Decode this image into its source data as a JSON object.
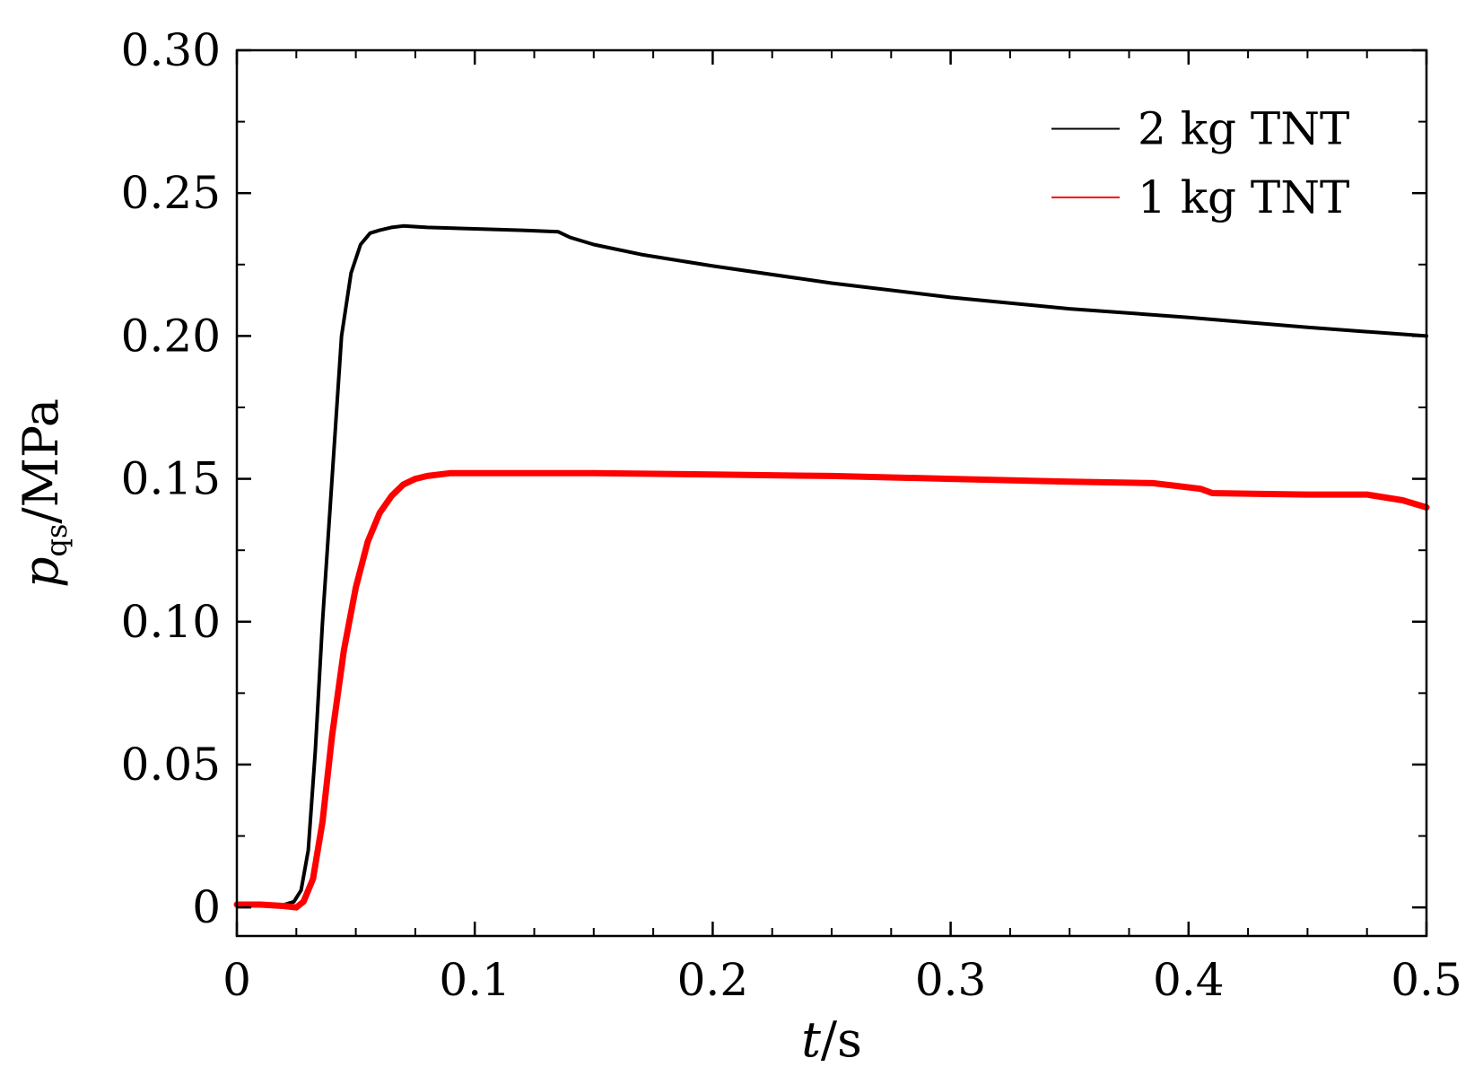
{
  "chart_data": {
    "type": "line",
    "title": "",
    "xlabel": {
      "var": "t",
      "unit": "/s"
    },
    "ylabel": {
      "var": "p",
      "sub": "qs",
      "unit": "/MPa"
    },
    "xlim": [
      0,
      0.5
    ],
    "ylim": [
      -0.01,
      0.3
    ],
    "x_ticks": [
      0,
      0.1,
      0.2,
      0.3,
      0.4,
      0.5
    ],
    "x_tick_labels": [
      "0",
      "0.1",
      "0.2",
      "0.3",
      "0.4",
      "0.5"
    ],
    "y_ticks": [
      0,
      0.05,
      0.1,
      0.15,
      0.2,
      0.25,
      0.3
    ],
    "y_tick_labels": [
      "0",
      "0.05",
      "0.10",
      "0.15",
      "0.20",
      "0.25",
      "0.30"
    ],
    "grid": false,
    "legend_position": "top-right",
    "series": [
      {
        "name": "2 kg TNT",
        "color": "#000000",
        "points": [
          [
            0,
            0.001
          ],
          [
            0.01,
            0.001
          ],
          [
            0.02,
            0.001
          ],
          [
            0.024,
            0.002
          ],
          [
            0.027,
            0.006
          ],
          [
            0.03,
            0.02
          ],
          [
            0.033,
            0.055
          ],
          [
            0.036,
            0.1
          ],
          [
            0.04,
            0.15
          ],
          [
            0.044,
            0.2
          ],
          [
            0.048,
            0.222
          ],
          [
            0.052,
            0.232
          ],
          [
            0.056,
            0.236
          ],
          [
            0.06,
            0.237
          ],
          [
            0.065,
            0.238
          ],
          [
            0.07,
            0.2385
          ],
          [
            0.08,
            0.238
          ],
          [
            0.1,
            0.2375
          ],
          [
            0.12,
            0.237
          ],
          [
            0.135,
            0.2365
          ],
          [
            0.14,
            0.2345
          ],
          [
            0.15,
            0.232
          ],
          [
            0.17,
            0.2285
          ],
          [
            0.2,
            0.2245
          ],
          [
            0.25,
            0.2185
          ],
          [
            0.3,
            0.2135
          ],
          [
            0.35,
            0.2095
          ],
          [
            0.4,
            0.2065
          ],
          [
            0.45,
            0.203
          ],
          [
            0.5,
            0.2
          ]
        ]
      },
      {
        "name": "1 kg TNT",
        "color": "#ff0000",
        "points": [
          [
            0,
            0.001
          ],
          [
            0.01,
            0.001
          ],
          [
            0.02,
            0.0005
          ],
          [
            0.025,
            0.0
          ],
          [
            0.028,
            0.002
          ],
          [
            0.032,
            0.01
          ],
          [
            0.036,
            0.03
          ],
          [
            0.04,
            0.06
          ],
          [
            0.045,
            0.09
          ],
          [
            0.05,
            0.112
          ],
          [
            0.055,
            0.128
          ],
          [
            0.06,
            0.138
          ],
          [
            0.065,
            0.144
          ],
          [
            0.07,
            0.148
          ],
          [
            0.075,
            0.15
          ],
          [
            0.08,
            0.151
          ],
          [
            0.09,
            0.152
          ],
          [
            0.1,
            0.152
          ],
          [
            0.15,
            0.152
          ],
          [
            0.2,
            0.1515
          ],
          [
            0.25,
            0.151
          ],
          [
            0.3,
            0.15
          ],
          [
            0.35,
            0.149
          ],
          [
            0.385,
            0.1485
          ],
          [
            0.395,
            0.1475
          ],
          [
            0.405,
            0.1465
          ],
          [
            0.41,
            0.145
          ],
          [
            0.45,
            0.1445
          ],
          [
            0.475,
            0.1445
          ],
          [
            0.49,
            0.1425
          ],
          [
            0.5,
            0.14
          ]
        ]
      }
    ]
  }
}
